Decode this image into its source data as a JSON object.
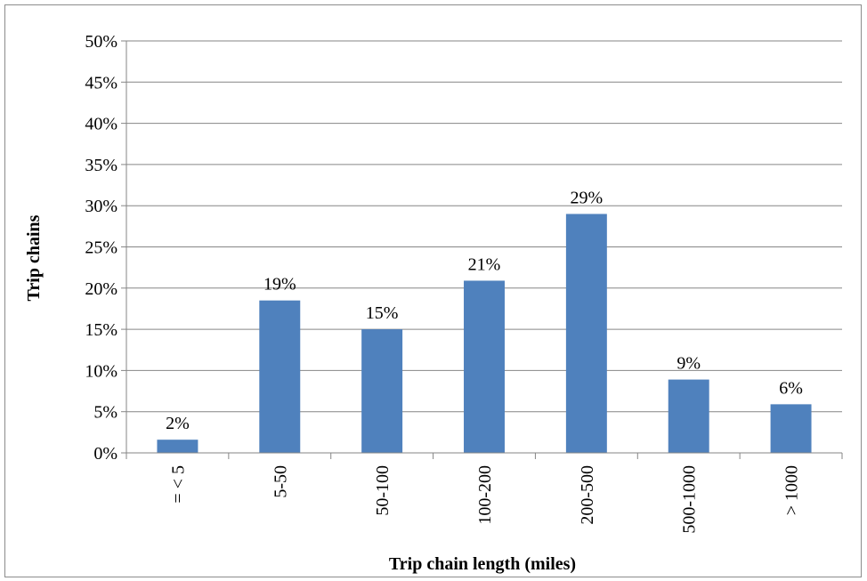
{
  "chart_data": {
    "type": "bar",
    "title": "",
    "xlabel": "Trip chain length (miles)",
    "ylabel": "Trip chains",
    "categories": [
      "= < 5",
      "5-50",
      "50-100",
      "100-200",
      "200-500",
      "500-1000",
      "> 1000"
    ],
    "values": [
      1.6,
      18.5,
      15.0,
      20.9,
      29.0,
      8.9,
      5.9
    ],
    "data_labels": [
      "2%",
      "19%",
      "15%",
      "21%",
      "29%",
      "9%",
      "6%"
    ],
    "ylim": [
      0,
      50
    ],
    "y_ticks": [
      0,
      5,
      10,
      15,
      20,
      25,
      30,
      35,
      40,
      45,
      50
    ],
    "y_tick_labels": [
      "0%",
      "5%",
      "10%",
      "15%",
      "20%",
      "25%",
      "30%",
      "35%",
      "40%",
      "45%",
      "50%"
    ],
    "grid": true,
    "legend": "none",
    "colors": {
      "bar": "#4f81bd",
      "grid": "#868686",
      "axis": "#868686",
      "frame": "#8c8c8c"
    }
  }
}
